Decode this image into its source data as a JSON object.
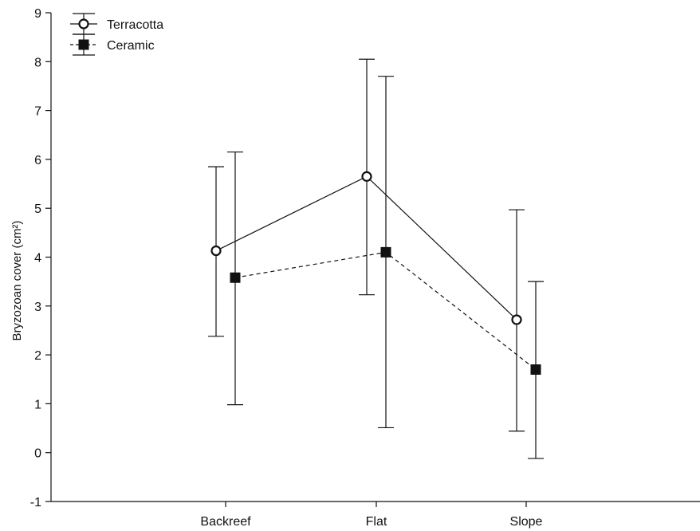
{
  "chart_data": {
    "type": "line",
    "title": "",
    "xlabel": "",
    "ylabel": "Bryzozoan cover (cm²)",
    "categories": [
      "Backreef",
      "Flat",
      "Slope"
    ],
    "ylim": [
      -1,
      9
    ],
    "yticks": [
      -1,
      0,
      1,
      2,
      3,
      4,
      5,
      6,
      7,
      8,
      9
    ],
    "grid": false,
    "legend_position": "top-left",
    "series": [
      {
        "name": "Terracotta",
        "marker": "open-circle",
        "line_style": "solid",
        "color": "#111111",
        "values": [
          4.13,
          5.65,
          2.72
        ],
        "error_low": [
          2.38,
          3.23,
          0.44
        ],
        "error_high": [
          5.85,
          8.05,
          4.97
        ]
      },
      {
        "name": "Ceramic",
        "marker": "filled-square",
        "line_style": "dashed",
        "color": "#111111",
        "values": [
          3.58,
          4.1,
          1.7
        ],
        "error_low": [
          0.98,
          0.51,
          -0.12
        ],
        "error_high": [
          6.15,
          7.7,
          3.5
        ]
      }
    ]
  }
}
